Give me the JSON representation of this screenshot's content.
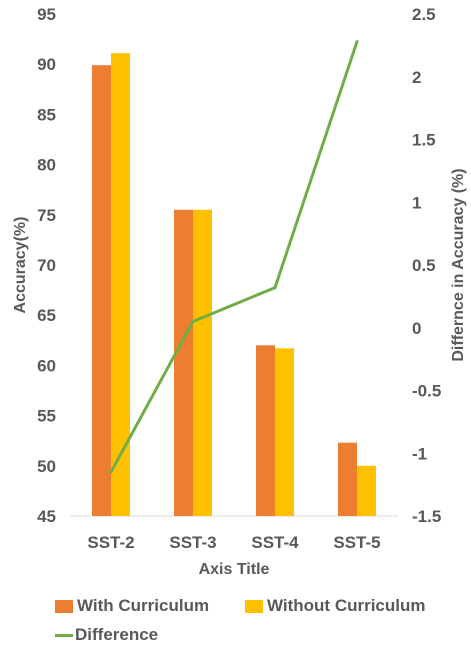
{
  "chart_data": {
    "type": "bar",
    "categories": [
      "SST-2",
      "SST-3",
      "SST-4",
      "SST-5"
    ],
    "series": [
      {
        "name": "With Curriculum",
        "values": [
          89.9,
          75.5,
          62.0,
          52.3
        ],
        "color": "#ED7D31",
        "axis": "left"
      },
      {
        "name": "Without Curriculum",
        "values": [
          91.1,
          75.5,
          61.7,
          50.0
        ],
        "color": "#FFC000",
        "axis": "left"
      },
      {
        "name": "Difference",
        "type": "line",
        "values": [
          -1.15,
          0.05,
          0.32,
          2.28
        ],
        "color": "#70AD47",
        "axis": "right"
      }
    ],
    "xlabel": "Axis Title",
    "ylabel": "Accuracy(%)",
    "y2label": "Differnce in Accuracy (%)",
    "ylim": [
      45,
      95
    ],
    "y_ticks": [
      "95",
      "90",
      "85",
      "80",
      "75",
      "70",
      "65",
      "60",
      "55",
      "50",
      "45"
    ],
    "y2lim": [
      -1.5,
      2.5
    ],
    "y2_ticks": [
      "2.5",
      "2",
      "1.5",
      "1",
      "0.5",
      "0",
      "-0.5",
      "-1",
      "-1.5"
    ],
    "grid": false,
    "legend_position": "bottom"
  }
}
